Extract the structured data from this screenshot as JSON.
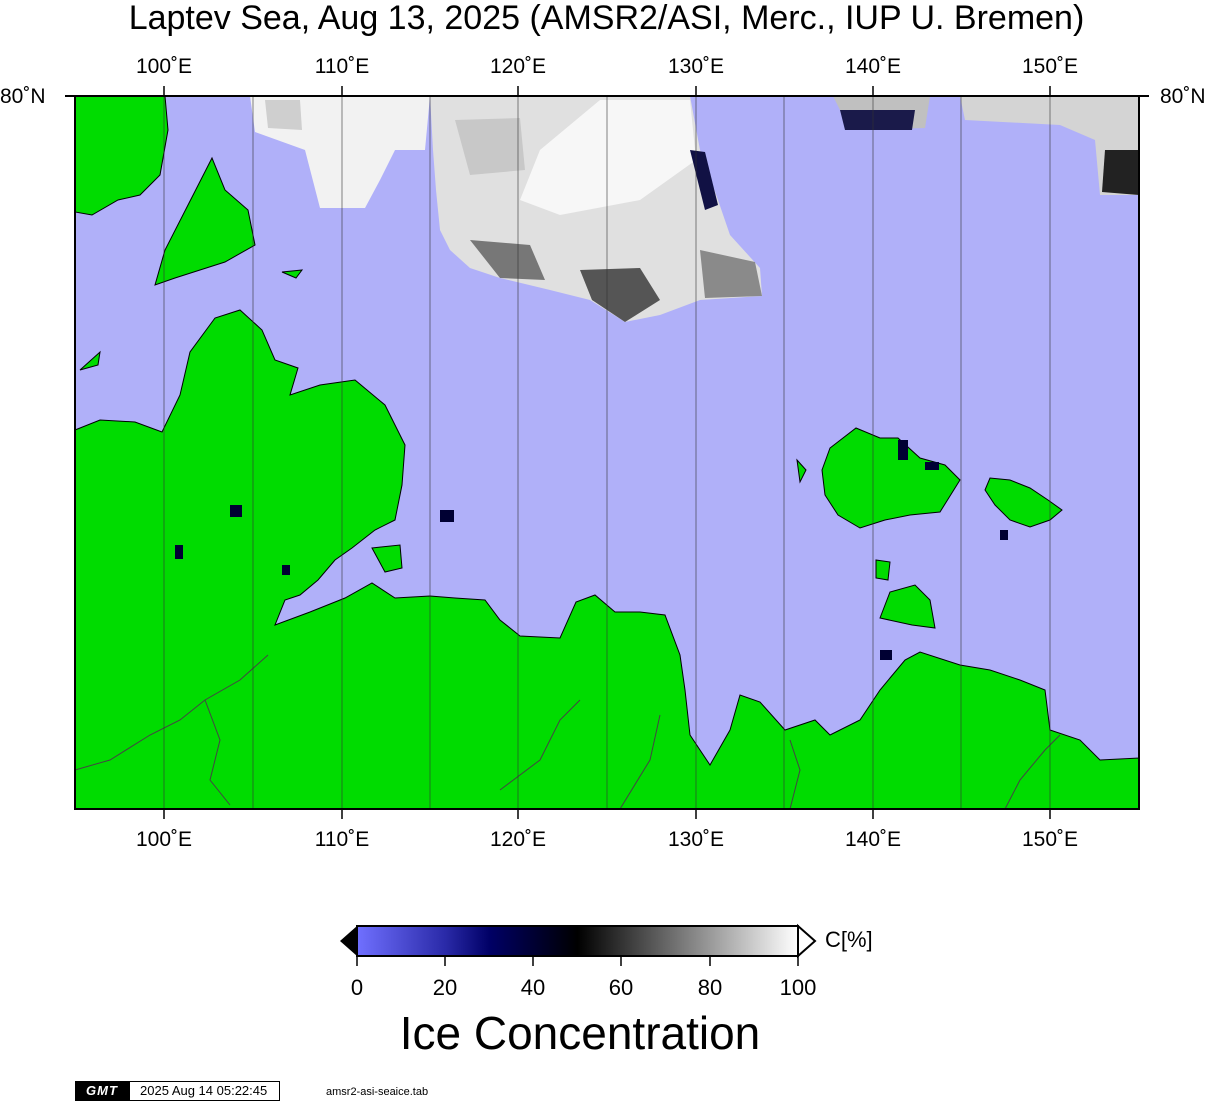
{
  "title": "Laptev Sea, Aug 13, 2025 (AMSR2/ASI, Merc., IUP U. Bremen)",
  "map": {
    "longitudes": [
      "100˚E",
      "110˚E",
      "120˚E",
      "130˚E",
      "140˚E",
      "150˚E"
    ],
    "latitude_label": "80˚N",
    "colors": {
      "water": "#b0b0f9",
      "land": "#00dc00",
      "coast": "#000000",
      "gridline": "#333333"
    }
  },
  "colorbar": {
    "unit_label": "C[%]",
    "ticks": [
      "0",
      "20",
      "40",
      "60",
      "80",
      "100"
    ],
    "title": "Ice Concentration",
    "stops": [
      "#7070ff",
      "#000066",
      "#000000",
      "#ffffff"
    ]
  },
  "footer": {
    "logo": "GMT",
    "timestamp": "2025 Aug 14 05:22:45",
    "filename": "amsr2-asi-seaice.tab"
  }
}
